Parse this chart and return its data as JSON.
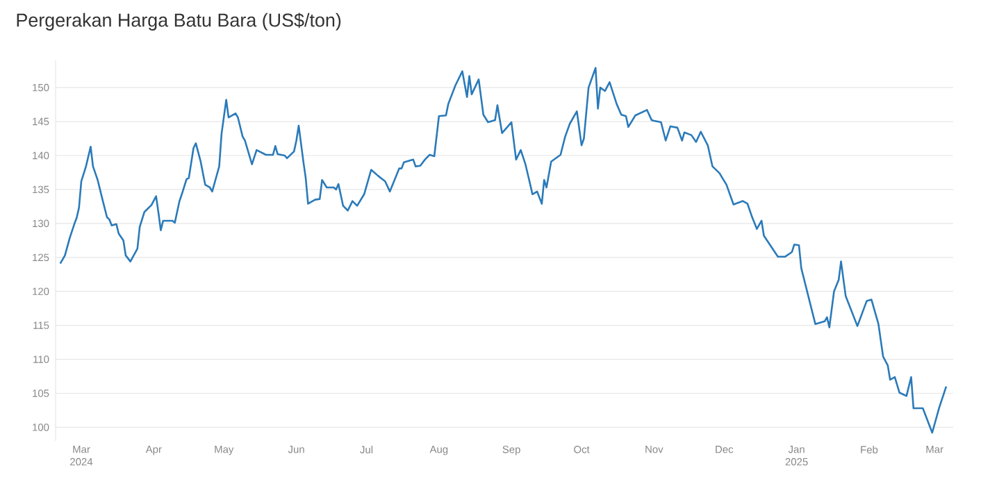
{
  "chart_data": {
    "type": "line",
    "title": "Pergerakan Harga Batu Bara (US$/ton)",
    "xlim": [
      "2024-02-19",
      "2025-03-09"
    ],
    "ylim": [
      98,
      154
    ],
    "xticks": [
      {
        "value": "2024-03-01",
        "label": "Mar 2024"
      },
      {
        "value": "2024-04-01",
        "label": "Apr"
      },
      {
        "value": "2024-05-01",
        "label": "May"
      },
      {
        "value": "2024-06-01",
        "label": "Jun"
      },
      {
        "value": "2024-07-01",
        "label": "Jul"
      },
      {
        "value": "2024-08-01",
        "label": "Aug"
      },
      {
        "value": "2024-09-01",
        "label": "Sep"
      },
      {
        "value": "2024-10-01",
        "label": "Oct"
      },
      {
        "value": "2024-11-01",
        "label": "Nov"
      },
      {
        "value": "2024-12-01",
        "label": "Dec"
      },
      {
        "value": "2025-01-01",
        "label": "Jan 2025"
      },
      {
        "value": "2025-02-01",
        "label": "Feb"
      },
      {
        "value": "2025-03-01",
        "label": "Mar"
      }
    ],
    "yticks": [
      100,
      105,
      110,
      115,
      120,
      125,
      130,
      135,
      140,
      145,
      150
    ],
    "grid": "y",
    "series": [
      {
        "color": "#2a7ab9",
        "x": [
          "2024-02-21",
          "2024-02-23",
          "2024-02-25",
          "2024-02-27",
          "2024-02-28",
          "2024-02-29",
          "2024-03-01",
          "2024-03-03",
          "2024-03-05",
          "2024-03-06",
          "2024-03-08",
          "2024-03-10",
          "2024-03-12",
          "2024-03-13",
          "2024-03-14",
          "2024-03-16",
          "2024-03-17",
          "2024-03-19",
          "2024-03-20",
          "2024-03-22",
          "2024-03-25",
          "2024-03-26",
          "2024-03-28",
          "2024-03-31",
          "2024-04-02",
          "2024-04-03",
          "2024-04-04",
          "2024-04-05",
          "2024-04-09",
          "2024-04-10",
          "2024-04-12",
          "2024-04-13",
          "2024-04-15",
          "2024-04-16",
          "2024-04-18",
          "2024-04-19",
          "2024-04-21",
          "2024-04-23",
          "2024-04-25",
          "2024-04-26",
          "2024-04-29",
          "2024-04-30",
          "2024-05-02",
          "2024-05-03",
          "2024-05-06",
          "2024-05-07",
          "2024-05-09",
          "2024-05-10",
          "2024-05-13",
          "2024-05-15",
          "2024-05-19",
          "2024-05-22",
          "2024-05-23",
          "2024-05-24",
          "2024-05-27",
          "2024-05-28",
          "2024-05-31",
          "2024-06-01",
          "2024-06-02",
          "2024-06-04",
          "2024-06-05",
          "2024-06-06",
          "2024-06-09",
          "2024-06-11",
          "2024-06-12",
          "2024-06-14",
          "2024-06-17",
          "2024-06-18",
          "2024-06-19",
          "2024-06-21",
          "2024-06-23",
          "2024-06-25",
          "2024-06-27",
          "2024-06-30",
          "2024-07-03",
          "2024-07-06",
          "2024-07-09",
          "2024-07-11",
          "2024-07-15",
          "2024-07-16",
          "2024-07-17",
          "2024-07-21",
          "2024-07-22",
          "2024-07-24",
          "2024-07-26",
          "2024-07-28",
          "2024-07-30",
          "2024-08-01",
          "2024-08-04",
          "2024-08-05",
          "2024-08-08",
          "2024-08-11",
          "2024-08-13",
          "2024-08-14",
          "2024-08-15",
          "2024-08-18",
          "2024-08-20",
          "2024-08-22",
          "2024-08-25",
          "2024-08-26",
          "2024-08-28",
          "2024-09-01",
          "2024-09-03",
          "2024-09-05",
          "2024-09-07",
          "2024-09-09",
          "2024-09-10",
          "2024-09-12",
          "2024-09-14",
          "2024-09-15",
          "2024-09-16",
          "2024-09-18",
          "2024-09-22",
          "2024-09-24",
          "2024-09-26",
          "2024-09-29",
          "2024-10-01",
          "2024-10-02",
          "2024-10-04",
          "2024-10-07",
          "2024-10-08",
          "2024-10-09",
          "2024-10-11",
          "2024-10-13",
          "2024-10-16",
          "2024-10-18",
          "2024-10-20",
          "2024-10-21",
          "2024-10-24",
          "2024-10-29",
          "2024-10-31",
          "2024-11-01",
          "2024-11-04",
          "2024-11-06",
          "2024-11-08",
          "2024-11-11",
          "2024-11-13",
          "2024-11-14",
          "2024-11-17",
          "2024-11-19",
          "2024-11-21",
          "2024-11-24",
          "2024-11-26",
          "2024-11-29",
          "2024-12-02",
          "2024-12-05",
          "2024-12-09",
          "2024-12-11",
          "2024-12-13",
          "2024-12-15",
          "2024-12-17",
          "2024-12-18",
          "2024-12-24",
          "2024-12-27",
          "2024-12-30",
          "2024-12-31",
          "2025-01-02",
          "2025-01-03",
          "2025-01-06",
          "2025-01-09",
          "2025-01-13",
          "2025-01-14",
          "2025-01-15",
          "2025-01-17",
          "2025-01-19",
          "2025-01-20",
          "2025-01-22",
          "2025-01-27",
          "2025-01-31",
          "2025-02-02",
          "2025-02-05",
          "2025-02-07",
          "2025-02-09",
          "2025-02-10",
          "2025-02-12",
          "2025-02-14",
          "2025-02-17",
          "2025-02-19",
          "2025-02-20",
          "2025-02-24",
          "2025-02-28",
          "2025-03-03",
          "2025-03-06"
        ],
        "values": [
          124.1,
          125.3,
          127.8,
          129.9,
          130.8,
          132.3,
          136.2,
          138.4,
          141.3,
          138.4,
          136.4,
          133.6,
          130.9,
          130.6,
          129.7,
          129.9,
          128.5,
          127.5,
          125.3,
          124.4,
          126.3,
          129.5,
          131.7,
          132.7,
          134.0,
          131.6,
          129.0,
          130.4,
          130.4,
          130.1,
          133.3,
          134.3,
          136.5,
          136.7,
          141.1,
          141.8,
          139.2,
          135.7,
          135.3,
          134.7,
          138.4,
          143.2,
          148.2,
          145.6,
          146.2,
          145.6,
          142.8,
          142.2,
          138.7,
          140.8,
          140.1,
          140.1,
          141.4,
          140.2,
          140.0,
          139.6,
          140.6,
          142.2,
          144.4,
          139.1,
          136.7,
          132.9,
          133.5,
          133.6,
          136.4,
          135.3,
          135.3,
          135.0,
          135.8,
          132.6,
          131.9,
          133.3,
          132.6,
          134.3,
          137.9,
          137.0,
          136.2,
          134.7,
          138.1,
          138.1,
          139.0,
          139.4,
          138.4,
          138.5,
          139.4,
          140.1,
          139.9,
          145.8,
          145.9,
          147.6,
          150.3,
          152.4,
          148.6,
          151.7,
          149.0,
          151.2,
          146.0,
          144.9,
          145.2,
          147.4,
          143.3,
          144.9,
          139.4,
          140.8,
          138.7,
          135.8,
          134.3,
          134.7,
          132.9,
          136.4,
          135.3,
          139.1,
          140.1,
          142.8,
          144.7,
          146.5,
          141.5,
          142.5,
          150.0,
          152.9,
          146.9,
          150.0,
          149.5,
          150.8,
          147.6,
          146.0,
          145.8,
          144.2,
          145.9,
          146.7,
          145.2,
          145.1,
          144.9,
          142.2,
          144.3,
          144.1,
          142.2,
          143.4,
          143.0,
          142.0,
          143.5,
          141.5,
          138.4,
          137.4,
          135.7,
          132.8,
          133.3,
          132.9,
          130.9,
          129.2,
          130.4,
          128.2,
          125.1,
          125.1,
          125.8,
          126.9,
          126.8,
          123.4,
          119.3,
          115.2,
          115.6,
          116.2,
          114.7,
          120.0,
          121.7,
          124.4,
          119.3,
          114.9,
          118.6,
          118.8,
          115.2,
          110.4,
          109.1,
          107.0,
          107.4,
          105.1,
          104.6,
          107.4,
          102.8,
          102.8,
          99.2,
          102.9,
          106.0
        ]
      }
    ]
  }
}
